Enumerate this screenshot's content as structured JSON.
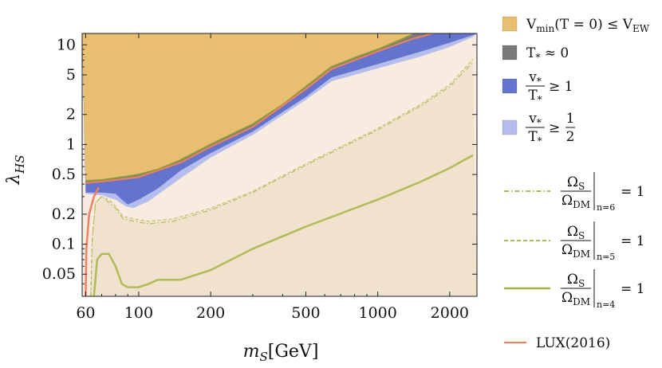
{
  "chart_data": {
    "type": "area",
    "title": "",
    "xlabel": "m_S[GeV]",
    "ylabel": "λ_HS",
    "x_scale": "log",
    "y_scale": "log",
    "xlim": [
      58,
      2600
    ],
    "ylim": [
      0.03,
      13
    ],
    "x_ticks": [
      60,
      100,
      200,
      500,
      1000,
      2000
    ],
    "x_tick_labels": [
      "60",
      "100",
      "200",
      "500",
      "1000",
      "2000"
    ],
    "y_ticks": [
      0.05,
      0.1,
      0.2,
      0.5,
      1,
      2,
      5,
      10
    ],
    "y_tick_labels": [
      "0.05",
      "0.1",
      "0.2",
      "0.5",
      "1",
      "2",
      "5",
      "10"
    ],
    "grid": false,
    "legend_position": "right",
    "colors": {
      "vmin": "#e8bf70",
      "tstar": "#7a7a7a",
      "vt1": "#6474cc",
      "vt_half": "#b4bdec",
      "relic": "#a6b446",
      "lux": "#f08060",
      "bg_light": "#f8ebe0",
      "bg_dark": "#f0e2cc"
    },
    "legend": [
      {
        "key": "vmin",
        "text": "V_min(T = 0) ≤ V_EW"
      },
      {
        "key": "tstar",
        "text": "T_* ≈ 0"
      },
      {
        "key": "vt1",
        "num": "v_*",
        "den": "T_*",
        "rel": "≥ 1"
      },
      {
        "key": "vt_half",
        "num": "v_*",
        "den": "T_*",
        "rel": "≥",
        "rnum": "1",
        "rden": "2"
      },
      {
        "key": "n6",
        "num": "Ω_S",
        "den": "Ω_DM",
        "sub": "n=6",
        "rel": "= 1"
      },
      {
        "key": "n5",
        "num": "Ω_S",
        "den": "Ω_DM",
        "sub": "n=5",
        "rel": "= 1"
      },
      {
        "key": "n4",
        "num": "Ω_S",
        "den": "Ω_DM",
        "sub": "n=4",
        "rel": "= 1"
      },
      {
        "key": "lux",
        "text": "LUX(2016)"
      }
    ],
    "series": [
      {
        "key": "vmin_boundary",
        "x": [
          60,
          70,
          80,
          90,
          100,
          120,
          150,
          200,
          300,
          400,
          500,
          640,
          800,
          1000,
          1200,
          1400
        ],
        "y": [
          0.43,
          0.44,
          0.46,
          0.48,
          0.5,
          0.56,
          0.7,
          1.0,
          1.6,
          2.5,
          3.8,
          6.0,
          7.4,
          9.0,
          10.8,
          12.7
        ]
      },
      {
        "key": "tstar_band_lower",
        "x": [
          60,
          80,
          100,
          150,
          200,
          300,
          500,
          640,
          1000,
          1400,
          1700
        ],
        "y": [
          0.41,
          0.44,
          0.47,
          0.66,
          0.95,
          1.5,
          3.6,
          5.7,
          8.6,
          11.5,
          13
        ]
      },
      {
        "key": "vt1_lower",
        "x": [
          60,
          70,
          80,
          85,
          90,
          100,
          120,
          150,
          200,
          300,
          500,
          640,
          1000,
          1500,
          2000,
          2500
        ],
        "y": [
          0.33,
          0.33,
          0.32,
          0.28,
          0.25,
          0.28,
          0.36,
          0.55,
          0.82,
          1.35,
          3.0,
          4.7,
          6.4,
          8.5,
          10.5,
          12.5
        ]
      },
      {
        "key": "vt_half_lower",
        "x": [
          60,
          70,
          80,
          88,
          95,
          110,
          130,
          150,
          200,
          300,
          500,
          640,
          1000,
          1500,
          2000,
          2500
        ],
        "y": [
          0.32,
          0.31,
          0.28,
          0.24,
          0.23,
          0.27,
          0.36,
          0.46,
          0.74,
          1.25,
          2.8,
          4.3,
          5.8,
          7.6,
          9.5,
          12
        ]
      },
      {
        "key": "lux",
        "x": [
          60,
          60.4,
          62,
          65,
          68
        ],
        "y": [
          0.03,
          0.09,
          0.2,
          0.3,
          0.37
        ]
      },
      {
        "key": "n6",
        "x": [
          63,
          64,
          66,
          70,
          80,
          86,
          95,
          110,
          140,
          200,
          300,
          500,
          1000,
          1500,
          2000,
          2500
        ],
        "y": [
          0.03,
          0.12,
          0.26,
          0.3,
          0.23,
          0.18,
          0.17,
          0.16,
          0.17,
          0.22,
          0.33,
          0.62,
          1.4,
          2.4,
          3.8,
          6.7
        ]
      },
      {
        "key": "n5",
        "x": [
          63,
          64,
          66,
          70,
          75,
          80,
          86,
          95,
          110,
          140,
          200,
          300,
          500,
          1000,
          1500,
          2000,
          2500
        ],
        "y": [
          0.03,
          0.12,
          0.26,
          0.3,
          0.28,
          0.24,
          0.19,
          0.18,
          0.17,
          0.18,
          0.23,
          0.34,
          0.64,
          1.45,
          2.5,
          4.0,
          7.2
        ]
      },
      {
        "key": "n4",
        "x": [
          65,
          67,
          70,
          75,
          80,
          85,
          90,
          100,
          110,
          120,
          150,
          200,
          300,
          500,
          1000,
          1500,
          2000,
          2500
        ],
        "y": [
          0.03,
          0.07,
          0.08,
          0.08,
          0.06,
          0.04,
          0.037,
          0.037,
          0.04,
          0.044,
          0.044,
          0.055,
          0.09,
          0.15,
          0.28,
          0.42,
          0.58,
          0.78
        ]
      }
    ]
  }
}
